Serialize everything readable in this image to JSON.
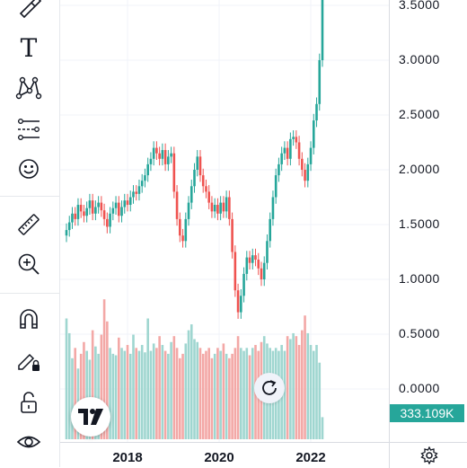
{
  "toolbar": {
    "tools": [
      {
        "id": "brush",
        "icon": "brush-icon"
      },
      {
        "id": "text",
        "icon": "text-icon",
        "glyph": "T"
      },
      {
        "id": "pattern",
        "icon": "xabcd-pattern-icon"
      },
      {
        "id": "prediction",
        "icon": "prediction-measurement-icon"
      },
      {
        "id": "emoji",
        "icon": "smiley-icon"
      },
      {
        "id": "measure",
        "icon": "ruler-icon"
      },
      {
        "id": "zoom",
        "icon": "zoom-in-icon"
      },
      {
        "id": "magnet",
        "icon": "magnet-icon"
      },
      {
        "id": "lock-drawings",
        "icon": "pencil-lock-icon"
      },
      {
        "id": "lock",
        "icon": "unlock-icon"
      },
      {
        "id": "hide",
        "icon": "eye-icon"
      }
    ]
  },
  "price_axis": {
    "labels": [
      "3.5000",
      "3.0000",
      "2.5000",
      "2.0000",
      "1.5000",
      "1.0000",
      "0.5000",
      "0.0000"
    ],
    "last_price": "333.109K",
    "last_price_color": "#26a69a"
  },
  "time_axis": {
    "labels": [
      "2018",
      "2020",
      "2022"
    ]
  },
  "colors": {
    "up": "#26a69a",
    "down": "#ef5350",
    "volume_up": "#9fd6d0",
    "volume_down": "#f3a8a6"
  },
  "chart_data": {
    "type": "candlestick",
    "x_range": [
      "2016-11",
      "2022-05"
    ],
    "ylim": [
      0.0,
      3.5
    ],
    "y_ticks": [
      0.0,
      0.5,
      1.0,
      1.5,
      2.0,
      2.5,
      3.0,
      3.5
    ],
    "x_ticks": [
      "2018",
      "2020",
      "2022"
    ],
    "grid": true,
    "close": [
      1.45,
      1.52,
      1.6,
      1.55,
      1.68,
      1.62,
      1.58,
      1.65,
      1.72,
      1.6,
      1.66,
      1.7,
      1.63,
      1.55,
      1.48,
      1.6,
      1.65,
      1.7,
      1.58,
      1.66,
      1.72,
      1.68,
      1.75,
      1.8,
      1.78,
      1.85,
      1.9,
      1.95,
      2.05,
      2.1,
      2.2,
      2.15,
      2.1,
      2.18,
      2.05,
      2.12,
      2.15,
      1.8,
      1.55,
      1.4,
      1.35,
      1.55,
      1.7,
      1.85,
      2.0,
      2.12,
      1.95,
      1.85,
      1.8,
      1.7,
      1.62,
      1.68,
      1.6,
      1.7,
      1.62,
      1.75,
      1.55,
      1.25,
      0.9,
      0.7,
      0.85,
      1.05,
      1.2,
      1.15,
      1.22,
      1.18,
      1.1,
      1.0,
      1.15,
      1.35,
      1.55,
      1.75,
      1.95,
      2.05,
      2.15,
      2.2,
      2.1,
      2.28,
      2.3,
      2.25,
      2.1,
      2.0,
      1.9,
      2.05,
      2.2,
      2.45,
      2.6,
      3.0,
      3.6
    ],
    "volume_relative": [
      0.82,
      0.72,
      0.55,
      0.62,
      0.48,
      0.58,
      0.66,
      0.6,
      0.54,
      0.74,
      0.63,
      0.58,
      0.71,
      0.95,
      0.8,
      0.62,
      0.58,
      0.57,
      0.69,
      0.62,
      0.6,
      0.64,
      0.58,
      0.71,
      0.62,
      0.6,
      0.64,
      0.59,
      0.82,
      0.6,
      0.65,
      0.62,
      0.7,
      0.64,
      0.6,
      0.58,
      0.66,
      0.7,
      0.62,
      0.55,
      0.58,
      0.65,
      0.74,
      0.78,
      0.68,
      0.66,
      0.62,
      0.58,
      0.6,
      0.62,
      0.55,
      0.58,
      0.62,
      0.6,
      0.65,
      0.58,
      0.55,
      0.58,
      0.62,
      0.7,
      0.62,
      0.6,
      0.62,
      0.57,
      0.62,
      0.64,
      0.6,
      0.66,
      0.7,
      0.65,
      0.62,
      0.6,
      0.62,
      0.6,
      0.64,
      0.6,
      0.7,
      0.68,
      0.72,
      0.7,
      0.64,
      0.74,
      0.84,
      0.72,
      0.64,
      0.6,
      0.64,
      0.52,
      0.15
    ]
  }
}
